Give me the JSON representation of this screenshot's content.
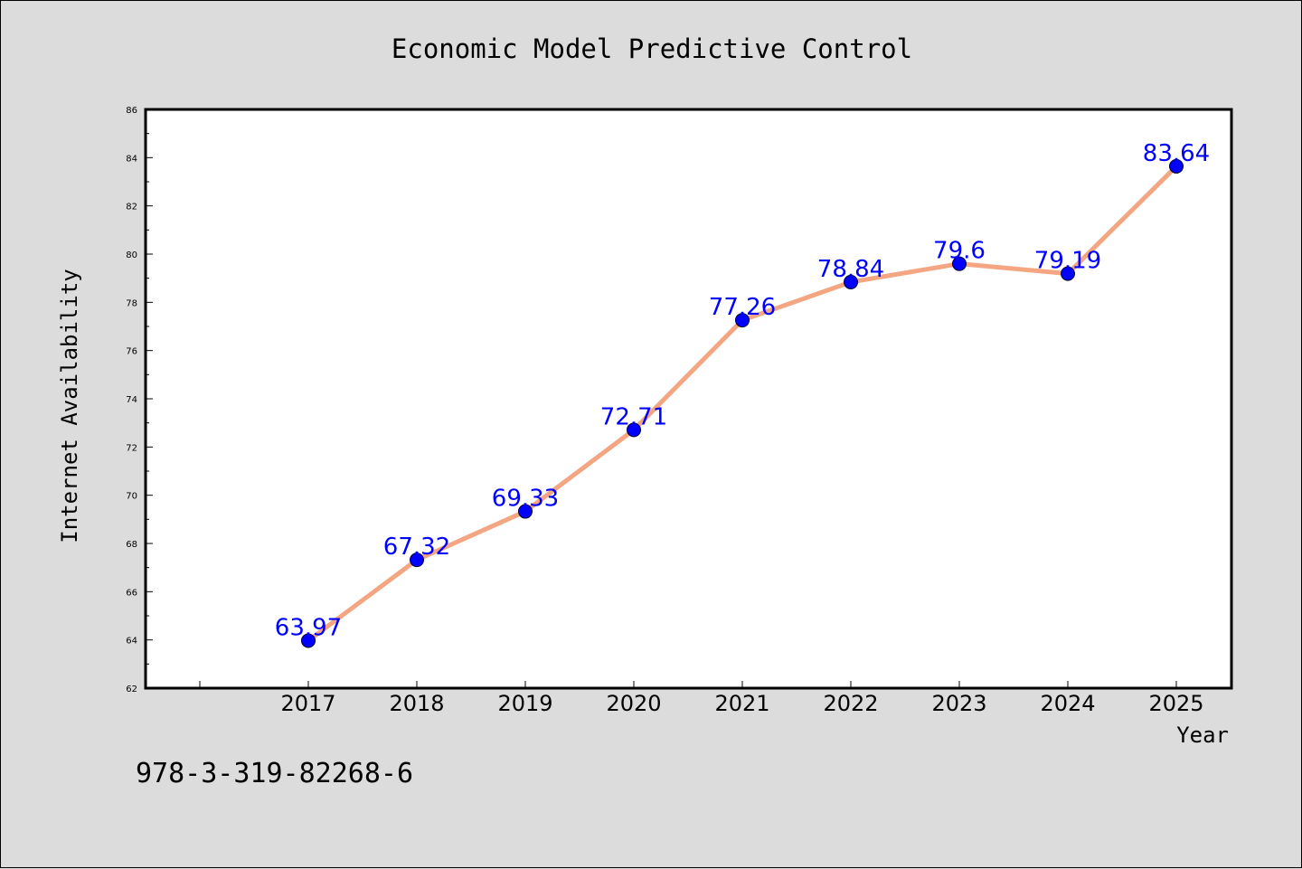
{
  "chart_data": {
    "type": "line",
    "title": "Economic Model Predictive Control",
    "xlabel": "Year",
    "ylabel": "Internet Availability",
    "categories": [
      "2017",
      "2018",
      "2019",
      "2020",
      "2021",
      "2022",
      "2023",
      "2024",
      "2025"
    ],
    "values": [
      63.97,
      67.32,
      69.33,
      72.71,
      77.26,
      78.84,
      79.6,
      79.19,
      83.64
    ],
    "data_labels": [
      "63.97",
      "67.32",
      "69.33",
      "72.71",
      "77.26",
      "78.84",
      "79.6",
      "79.19",
      "83.64"
    ],
    "ylim": [
      62,
      86
    ],
    "yticks": [
      62,
      64,
      66,
      68,
      70,
      72,
      74,
      76,
      78,
      80,
      82,
      84,
      86
    ],
    "grid": false,
    "legend": "none",
    "line_color": "#f4a582",
    "marker_color": "#0000ff",
    "label_color": "#0000ff"
  },
  "footer_text": "978-3-319-82268-6"
}
